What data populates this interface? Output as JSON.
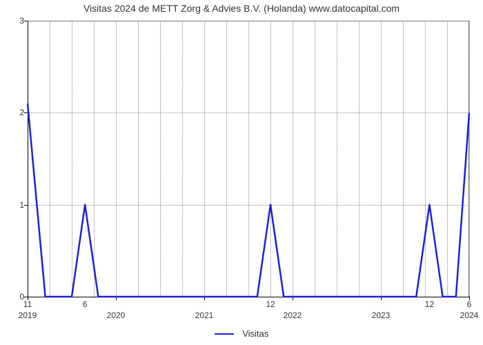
{
  "chart": {
    "type": "line",
    "title": "Visitas 2024 de METT Zorg & Advies B.V. (Holanda) www.datocapital.com",
    "title_fontsize": 14,
    "background_color": "#ffffff",
    "grid_color": "#888888",
    "axis_color": "#000000",
    "border_color": "#666666",
    "series": {
      "name": "Visitas",
      "color": "#1f1fd6",
      "line_width": 2.5,
      "points": [
        {
          "x": 0.0,
          "y": 2.1
        },
        {
          "x": 0.04,
          "y": 0.0
        },
        {
          "x": 0.1,
          "y": 0.0
        },
        {
          "x": 0.13,
          "y": 1.0
        },
        {
          "x": 0.16,
          "y": 0.0
        },
        {
          "x": 0.52,
          "y": 0.0
        },
        {
          "x": 0.55,
          "y": 1.0
        },
        {
          "x": 0.58,
          "y": 0.0
        },
        {
          "x": 0.88,
          "y": 0.0
        },
        {
          "x": 0.91,
          "y": 1.0
        },
        {
          "x": 0.94,
          "y": 0.0
        },
        {
          "x": 0.97,
          "y": 0.0
        },
        {
          "x": 1.0,
          "y": 2.0
        }
      ]
    },
    "value_labels": [
      {
        "x": 0.0,
        "label": "11"
      },
      {
        "x": 0.13,
        "label": "6"
      },
      {
        "x": 0.55,
        "label": "12"
      },
      {
        "x": 0.91,
        "label": "12"
      },
      {
        "x": 1.0,
        "label": "6"
      }
    ],
    "x_axis": {
      "min": 0,
      "max": 1,
      "ticks": [
        {
          "pos": 0.0,
          "label": "2019"
        },
        {
          "pos": 0.2,
          "label": "2020"
        },
        {
          "pos": 0.4,
          "label": "2021"
        },
        {
          "pos": 0.6,
          "label": "2022"
        },
        {
          "pos": 0.8,
          "label": "2023"
        },
        {
          "pos": 1.0,
          "label": "2024"
        }
      ],
      "minor_ticks": [
        0.05,
        0.1,
        0.15,
        0.25,
        0.3,
        0.35,
        0.45,
        0.5,
        0.55,
        0.65,
        0.7,
        0.75,
        0.85,
        0.9,
        0.95
      ],
      "tick_fontsize": 12
    },
    "y_axis": {
      "min": 0,
      "max": 3,
      "ticks": [
        0,
        1,
        2,
        3
      ],
      "tick_fontsize": 12
    },
    "legend": {
      "label": "Visitas",
      "fontsize": 13
    },
    "label_fontsize": 12
  }
}
